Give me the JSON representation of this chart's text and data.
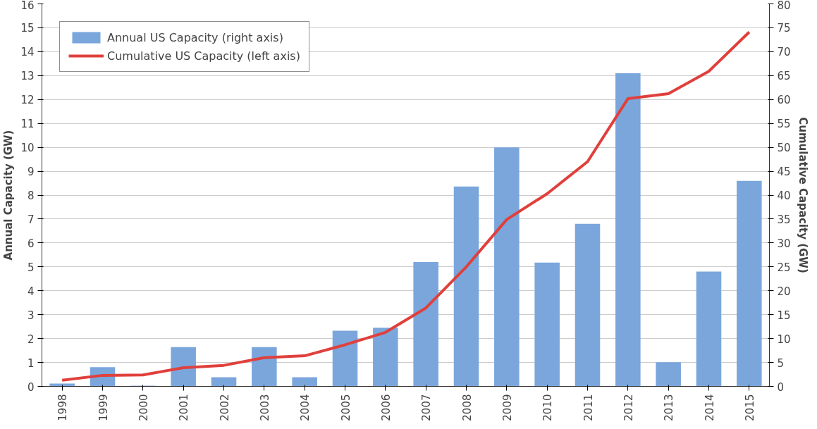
{
  "chart_data": {
    "type": "bar",
    "categories": [
      "1998",
      "1999",
      "2000",
      "2001",
      "2002",
      "2003",
      "2004",
      "2005",
      "2006",
      "2007",
      "2008",
      "2009",
      "2010",
      "2011",
      "2012",
      "2013",
      "2014",
      "2015"
    ],
    "series": [
      {
        "name": "Annual US Capacity (right axis)",
        "color": "#7aa6dc",
        "values": [
          0.12,
          0.8,
          0.03,
          1.64,
          0.38,
          1.64,
          0.38,
          2.33,
          2.45,
          5.2,
          8.36,
          10.0,
          5.18,
          6.8,
          13.1,
          1.01,
          4.8,
          8.6
        ]
      },
      {
        "name": "Cumulative US Capacity (left axis)",
        "type": "line",
        "axis": "y2",
        "color": "#e0403c",
        "values": [
          1.3,
          2.3,
          2.4,
          3.9,
          4.4,
          6.0,
          6.4,
          8.7,
          11.3,
          16.4,
          25,
          34.9,
          40.3,
          47,
          60.2,
          61.2,
          65.9,
          74.1
        ]
      }
    ],
    "ylabel": "Annual Capacity (GW)",
    "y2label": "Cumulative Capacity (GW)",
    "ylim": [
      0,
      16
    ],
    "yticks": [
      0,
      1,
      2,
      3,
      4,
      5,
      6,
      7,
      8,
      9,
      10,
      11,
      12,
      13,
      14,
      15,
      16
    ],
    "y2lim": [
      0,
      80
    ],
    "y2ticks": [
      0,
      5,
      10,
      15,
      20,
      25,
      30,
      35,
      40,
      45,
      50,
      55,
      60,
      65,
      70,
      75,
      80
    ],
    "grid": "y",
    "legend": "top left"
  }
}
